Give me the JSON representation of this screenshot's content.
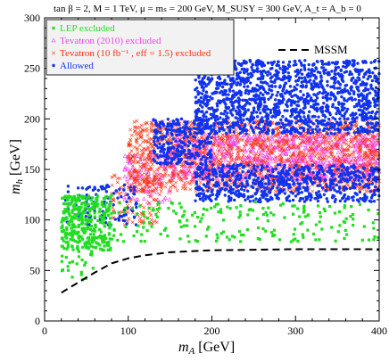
{
  "chart_data": {
    "type": "scatter",
    "title": "tan β = 2,  M = 1 TeV,  μ = mₛ = 200 GeV,  M_SUSY = 300 GeV, A_t = A_b = 0",
    "xlabel": "m_A [GeV]",
    "ylabel": "m_h [GeV]",
    "xlim": [
      0,
      400
    ],
    "ylim": [
      0,
      300
    ],
    "xticks": [
      "0",
      "100",
      "200",
      "300",
      "400"
    ],
    "yticks": [
      "0",
      "50",
      "100",
      "150",
      "200",
      "250",
      "300"
    ],
    "legend_position": "top-left",
    "grid": false,
    "series": [
      {
        "name": "LEP excluded",
        "color": "#22dd22",
        "marker": "square",
        "clusters": [
          {
            "x": [
              20,
              80
            ],
            "y": [
              70,
              125
            ],
            "n": 340
          },
          {
            "x": [
              20,
              60
            ],
            "y": [
              40,
              70
            ],
            "n": 25
          },
          {
            "x": [
              80,
              400
            ],
            "y": [
              78,
              118
            ],
            "n": 200
          }
        ]
      },
      {
        "name": "Tevatron (2010) excluded",
        "color": "#ee44ee",
        "marker": "triangle",
        "clusters": [
          {
            "x": [
              150,
              400
            ],
            "y": [
              140,
              185
            ],
            "n": 900
          },
          {
            "x": [
              95,
              150
            ],
            "y": [
              115,
              170
            ],
            "n": 120
          }
        ]
      },
      {
        "name": "Tevatron (10 fb⁻¹ , eff = 1.5) excluded",
        "color": "#ff3311",
        "marker": "cross",
        "clusters": [
          {
            "x": [
              100,
              400
            ],
            "y": [
              128,
              198
            ],
            "n": 1500
          },
          {
            "x": [
              80,
              140
            ],
            "y": [
              95,
              145
            ],
            "n": 120
          }
        ]
      },
      {
        "name": "Allowed",
        "color": "#1133ee",
        "marker": "circle",
        "clusters": [
          {
            "x": [
              180,
              400
            ],
            "y": [
              185,
              258
            ],
            "n": 1500
          },
          {
            "x": [
              130,
              200
            ],
            "y": [
              155,
              200
            ],
            "n": 300
          },
          {
            "x": [
              180,
              400
            ],
            "y": [
              118,
              155
            ],
            "n": 700
          },
          {
            "x": [
              25,
              110
            ],
            "y": [
              95,
              135
            ],
            "n": 120
          }
        ]
      }
    ],
    "curve": {
      "name": "MSSM",
      "style": "dashed",
      "color": "#000000",
      "x": [
        20,
        40,
        60,
        80,
        100,
        120,
        150,
        200,
        250,
        300,
        350,
        400
      ],
      "y": [
        28,
        38,
        48,
        57,
        62,
        65,
        68,
        70,
        70.5,
        71,
        71,
        71
      ]
    }
  }
}
